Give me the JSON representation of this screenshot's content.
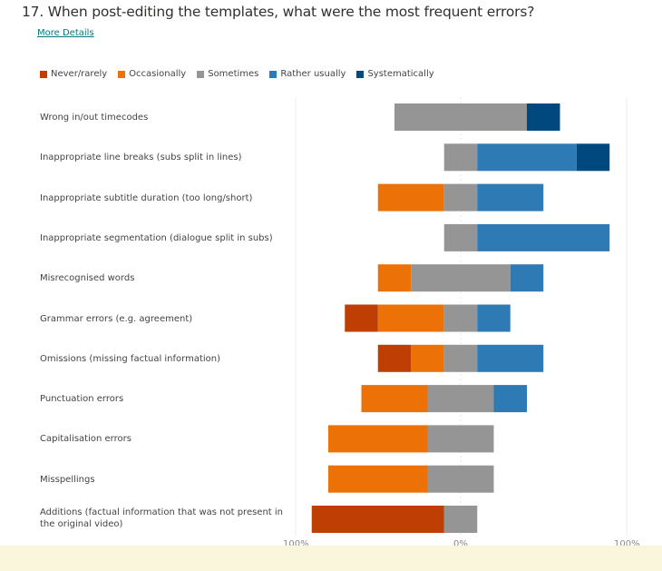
{
  "question": {
    "title": "17.  When post-editing the templates, what were the most frequent errors?",
    "more_details_label": "More Details"
  },
  "chart_data": {
    "type": "bar",
    "orientation": "horizontal",
    "stacked": "diverging",
    "title": "When post-editing the templates, what were the most frequent errors?",
    "xlabel": "",
    "ylabel": "",
    "xlim": [
      -100,
      100
    ],
    "x_tick_labels": [
      "100%",
      "0%",
      "100%"
    ],
    "legend_position": "top-left",
    "grid": false,
    "categories": [
      "Wrong in/out timecodes",
      "Inappropriate line breaks (subs split in lines)",
      "Inappropriate subtitle duration (too long/short)",
      "Inappropriate segmentation (dialogue split in subs)",
      "Misrecognised words",
      "Grammar errors (e.g. agreement)",
      "Omissions (missing factual information)",
      "Punctuation errors",
      "Capitalisation errors",
      "Misspellings",
      "Additions (factual information that was not present in the original video)"
    ],
    "series": [
      {
        "name": "Never/rarely",
        "color": "#bf3e04",
        "side": "negative",
        "values": [
          0,
          0,
          0,
          0,
          0,
          20,
          20,
          0,
          0,
          0,
          80
        ]
      },
      {
        "name": "Occasionally",
        "color": "#ec7208",
        "side": "negative",
        "values": [
          0,
          0,
          40,
          0,
          20,
          40,
          20,
          40,
          60,
          60,
          0
        ]
      },
      {
        "name": "Sometimes",
        "color": "#959595",
        "side": "center",
        "values": [
          80,
          20,
          20,
          20,
          60,
          20,
          20,
          40,
          40,
          40,
          20
        ]
      },
      {
        "name": "Rather usually",
        "color": "#2e7ab5",
        "side": "positive",
        "values": [
          0,
          60,
          40,
          80,
          20,
          20,
          40,
          20,
          0,
          0,
          0
        ]
      },
      {
        "name": "Systematically",
        "color": "#01487f",
        "side": "positive",
        "values": [
          20,
          20,
          0,
          0,
          0,
          0,
          0,
          0,
          0,
          0,
          0
        ]
      }
    ],
    "units": "percent of respondents"
  }
}
